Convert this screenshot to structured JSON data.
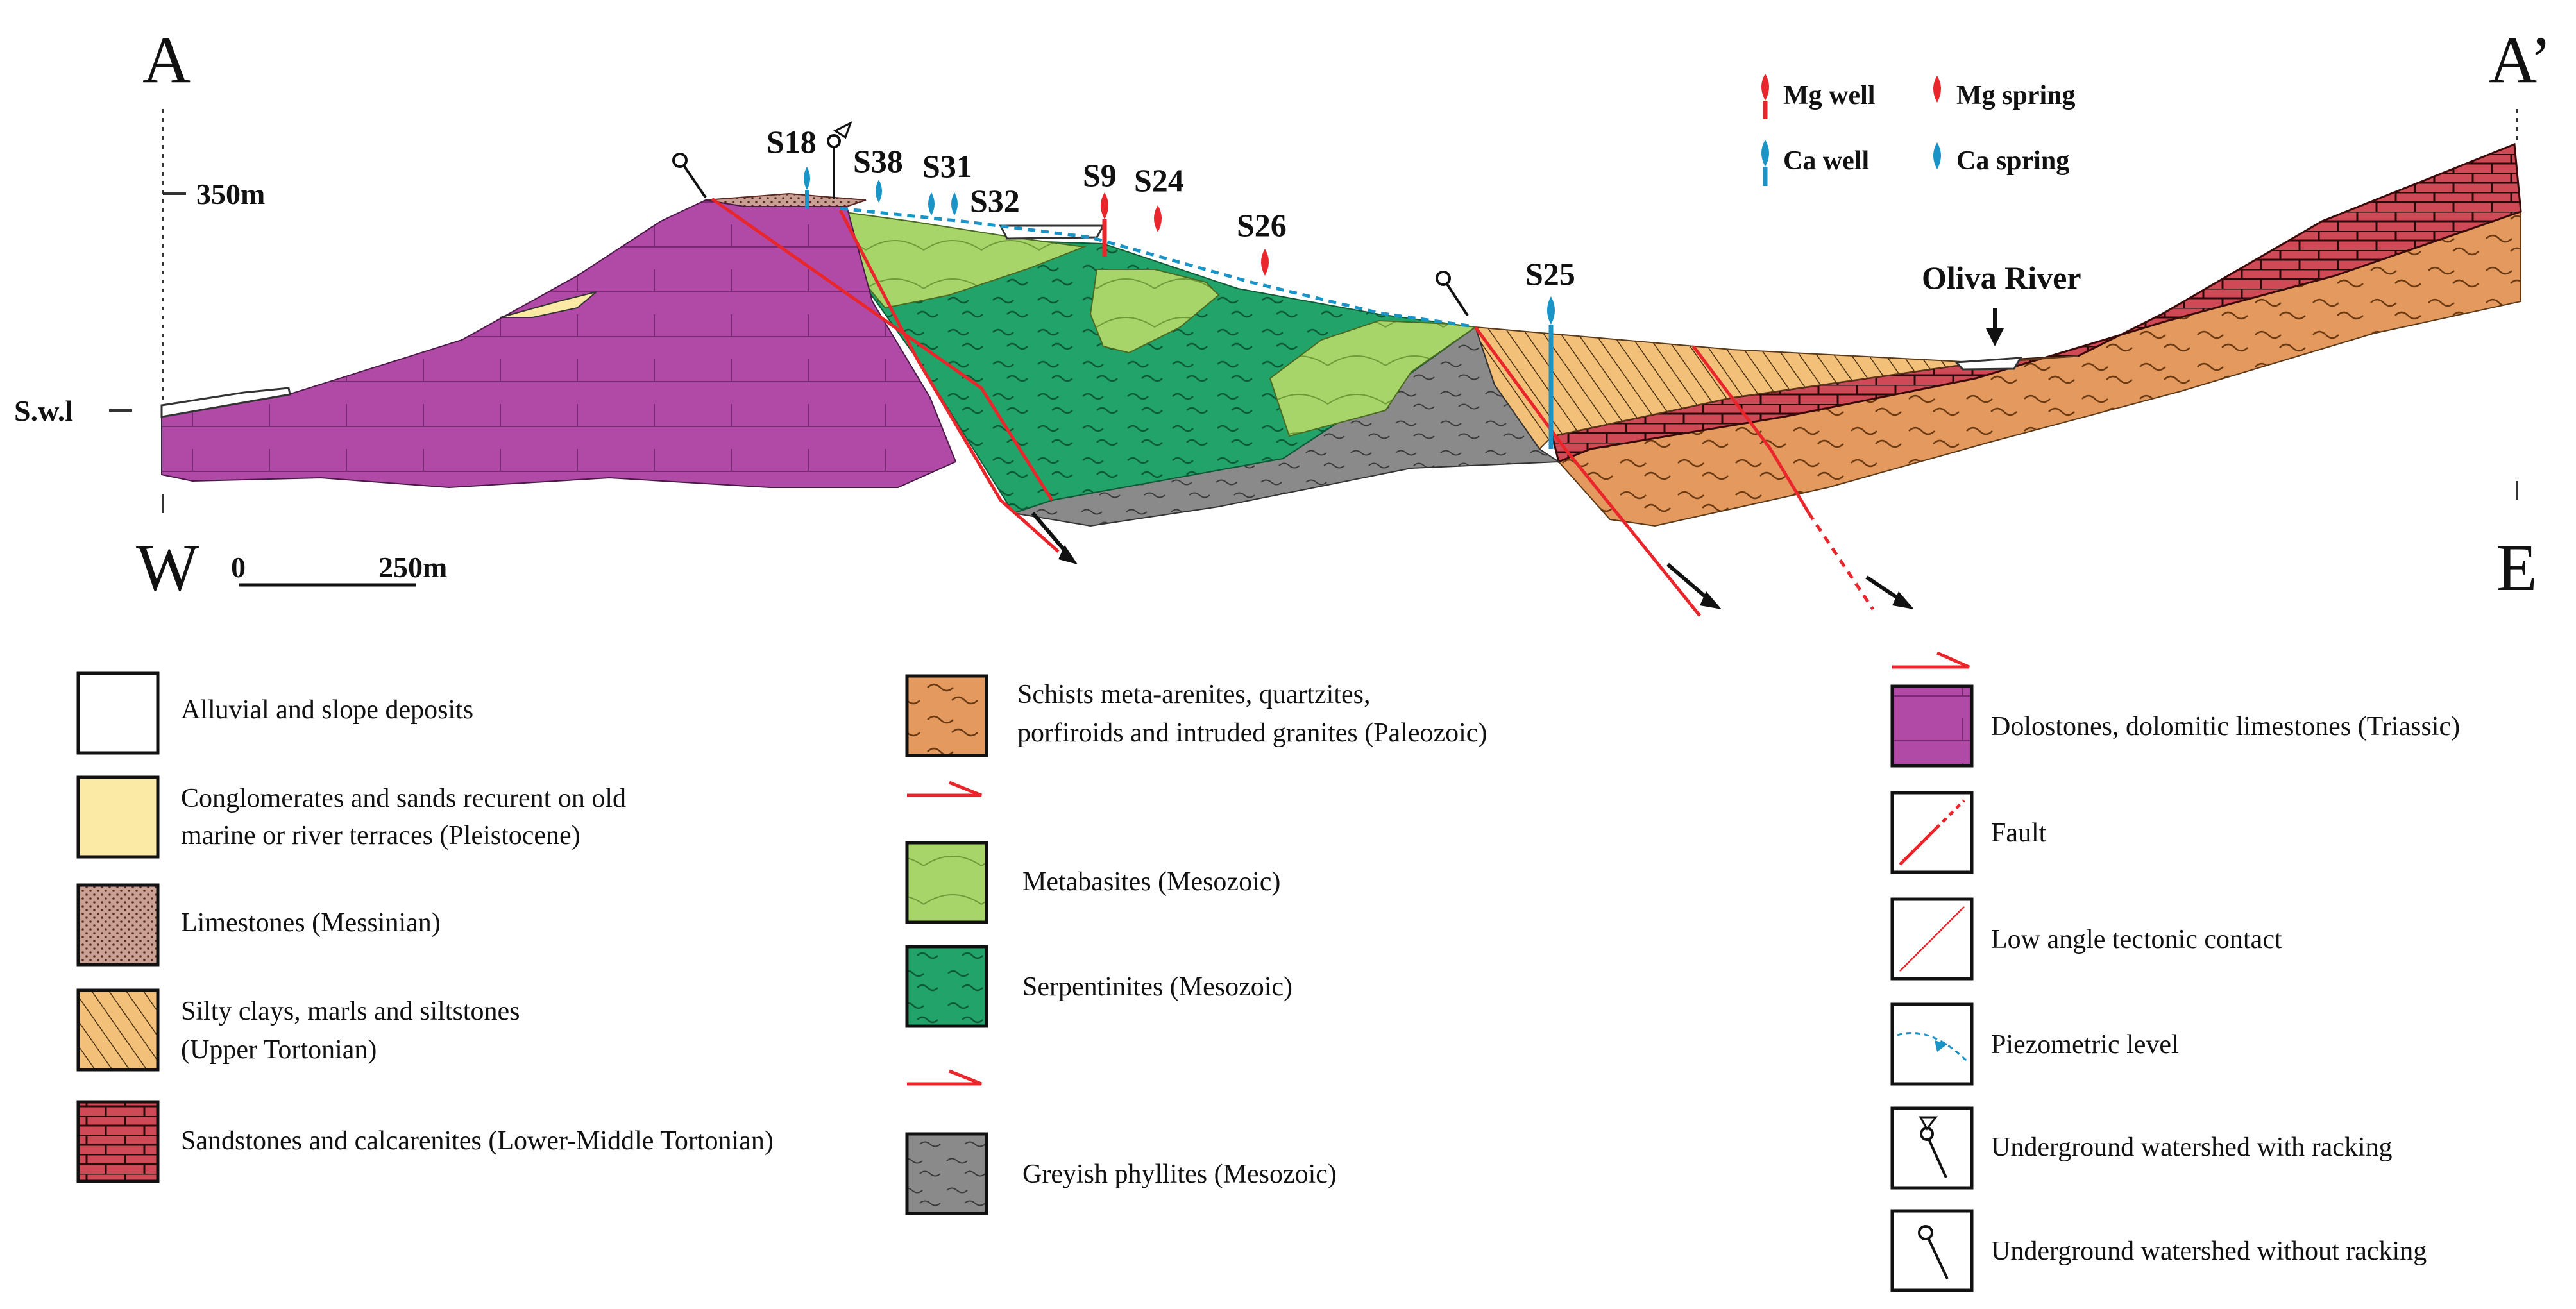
{
  "section": {
    "start_label": "A",
    "end_label": "A’",
    "west_label": "W",
    "east_label": "E",
    "elevation_label": "350m",
    "sea_level_label": "S.w.l",
    "scale_zero": "0",
    "scale_length": "250m",
    "river_label": "Oliva River"
  },
  "wells": [
    {
      "id": "S18",
      "type": "Ca well"
    },
    {
      "id": "S38",
      "type": "Ca spring"
    },
    {
      "id": "S31",
      "type": "Ca spring"
    },
    {
      "id": "S32",
      "type": "Ca spring"
    },
    {
      "id": "S9",
      "type": "Mg well"
    },
    {
      "id": "S24",
      "type": "Mg spring"
    },
    {
      "id": "S26",
      "type": "Mg spring"
    },
    {
      "id": "S25",
      "type": "Ca well"
    }
  ],
  "symbol_legend": {
    "mg_well": "Mg well",
    "mg_spring": "Mg spring",
    "ca_well": "Ca well",
    "ca_spring": "Ca spring"
  },
  "legend": {
    "col1": [
      {
        "label_lines": [
          "Alluvial and slope deposits"
        ]
      },
      {
        "label_lines": [
          "Conglomerates and sands recurent on old",
          "marine or river terraces (Pleistocene)"
        ]
      },
      {
        "label_lines": [
          "Limestones (Messinian)"
        ]
      },
      {
        "label_lines": [
          "Silty clays, marls and siltstones",
          "(Upper Tortonian)"
        ]
      },
      {
        "label_lines": [
          "Sandstones and calcarenites (Lower-Middle Tortonian)"
        ]
      }
    ],
    "col2": [
      {
        "label_lines": [
          "Schists meta-arenites, quartzites,",
          "porfiroids and intruded granites (Paleozoic)"
        ]
      },
      {
        "label_lines": [
          "Metabasites (Mesozoic)"
        ]
      },
      {
        "label_lines": [
          "Serpentinites (Mesozoic)"
        ]
      },
      {
        "label_lines": [
          "Greyish phyllites (Mesozoic)"
        ]
      }
    ],
    "col3": [
      {
        "label_lines": [
          "Dolostones, dolomitic limestones (Triassic)"
        ]
      },
      {
        "label_lines": [
          "Fault"
        ]
      },
      {
        "label_lines": [
          "Low angle tectonic contact"
        ]
      },
      {
        "label_lines": [
          "Piezometric level"
        ]
      },
      {
        "label_lines": [
          "Underground watershed with racking"
        ]
      },
      {
        "label_lines": [
          "Underground watershed without racking"
        ]
      }
    ]
  },
  "colors": {
    "dolostone": "#b04aa6",
    "serpentinite": "#22a36a",
    "metabasite": "#a8d56a",
    "phyllite": "#8a8a8a",
    "schist": "#e49a5e",
    "sandstone": "#cf4a56",
    "silty_clay": "#f3c079",
    "limestone": "#c9a094",
    "conglomerate": "#fbe9a6",
    "fault": "#e8262b",
    "mg": "#e8262b",
    "ca": "#1a93c6"
  }
}
